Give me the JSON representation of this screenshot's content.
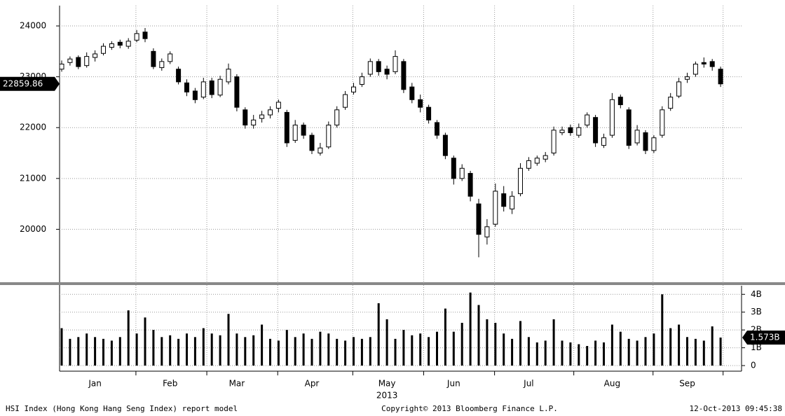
{
  "chart_data": [
    {
      "type": "candlestick",
      "categories": [
        null,
        null,
        null,
        null,
        "Jan",
        null,
        null,
        null,
        null,
        null,
        null,
        null,
        null,
        "Feb",
        null,
        null,
        null,
        null,
        null,
        null,
        null,
        "Mar",
        null,
        null,
        null,
        null,
        null,
        null,
        null,
        null,
        "Apr",
        null,
        null,
        null,
        null,
        null,
        null,
        null,
        null,
        "May",
        null,
        null,
        null,
        null,
        null,
        null,
        null,
        "Jun",
        null,
        null,
        null,
        null,
        null,
        null,
        null,
        null,
        "Jul",
        null,
        null,
        null,
        null,
        null,
        null,
        null,
        null,
        null,
        "Aug",
        null,
        null,
        null,
        null,
        null,
        null,
        null,
        null,
        "Sep",
        null,
        null,
        null,
        null
      ],
      "open": [
        23150,
        23280,
        23380,
        23220,
        23380,
        23460,
        23580,
        23680,
        23600,
        23720,
        23880,
        23500,
        23180,
        23300,
        23150,
        22880,
        22720,
        22600,
        22920,
        22640,
        22900,
        23000,
        22350,
        22050,
        22180,
        22250,
        22380,
        22300,
        21750,
        22050,
        21850,
        21500,
        21620,
        22050,
        22400,
        22700,
        22850,
        23050,
        23300,
        23150,
        23100,
        23300,
        22800,
        22550,
        22400,
        22100,
        21850,
        21400,
        21000,
        21100,
        20500,
        19850,
        20100,
        20700,
        20400,
        20700,
        21200,
        21300,
        21380,
        21500,
        21900,
        22000,
        21850,
        22050,
        22200,
        21650,
        21850,
        22600,
        22350,
        21700,
        21900,
        21550,
        21850,
        22380,
        22620,
        22950,
        23050,
        23280,
        23300,
        23150
      ],
      "high": [
        23320,
        23400,
        23420,
        23480,
        23520,
        23660,
        23700,
        23730,
        23760,
        23920,
        23960,
        23560,
        23360,
        23500,
        23200,
        22950,
        22780,
        22980,
        22980,
        23020,
        23260,
        23050,
        22400,
        22250,
        22330,
        22420,
        22550,
        22350,
        22150,
        22100,
        21900,
        21700,
        22120,
        22420,
        22720,
        22880,
        23080,
        23360,
        23350,
        23220,
        23520,
        23350,
        22880,
        22650,
        22450,
        22150,
        21900,
        21450,
        21280,
        21150,
        20600,
        20200,
        20900,
        20850,
        20750,
        21300,
        21420,
        21450,
        21520,
        22020,
        22020,
        22060,
        22080,
        22300,
        22250,
        21880,
        22680,
        22650,
        22400,
        22050,
        21950,
        21850,
        22420,
        22680,
        22980,
        23080,
        23300,
        23380,
        23350,
        23200
      ],
      "low": [
        23100,
        23220,
        23150,
        23180,
        23300,
        23420,
        23530,
        23560,
        23550,
        23680,
        23680,
        23150,
        23120,
        23250,
        22850,
        22620,
        22480,
        22560,
        22580,
        22600,
        22850,
        22320,
        21980,
        21980,
        22100,
        22180,
        22300,
        21620,
        21700,
        21780,
        21480,
        21450,
        21580,
        22000,
        22350,
        22650,
        22800,
        23000,
        23020,
        22950,
        23050,
        22680,
        22480,
        22300,
        22080,
        21780,
        21380,
        20880,
        20950,
        20550,
        19450,
        19700,
        20050,
        20350,
        20300,
        20650,
        21150,
        21250,
        21320,
        21450,
        21850,
        21840,
        21800,
        22000,
        21620,
        21600,
        21800,
        22380,
        21580,
        21650,
        21480,
        21500,
        21800,
        22330,
        22580,
        22880,
        23000,
        23180,
        23120,
        22800
      ],
      "close": [
        23250,
        23350,
        23200,
        23400,
        23450,
        23600,
        23650,
        23620,
        23700,
        23850,
        23750,
        23200,
        23300,
        23450,
        22900,
        22700,
        22550,
        22900,
        22650,
        22950,
        23150,
        22400,
        22050,
        22150,
        22250,
        22350,
        22500,
        21700,
        22050,
        21850,
        21550,
        21600,
        22050,
        22350,
        22650,
        22800,
        23000,
        23300,
        23100,
        23050,
        23400,
        22750,
        22550,
        22400,
        22150,
        21850,
        21450,
        21000,
        21200,
        20650,
        19900,
        20050,
        20750,
        20450,
        20650,
        21200,
        21350,
        21400,
        21450,
        21950,
        21950,
        21900,
        22000,
        22250,
        21700,
        21800,
        22550,
        22450,
        21650,
        21950,
        21550,
        21800,
        22350,
        22600,
        22900,
        23000,
        23250,
        23250,
        23200,
        22859.86
      ],
      "ylim": [
        19000,
        24400
      ],
      "yticks": [
        20000,
        21000,
        22000,
        23000,
        24000
      ],
      "grid": true,
      "x_year_label": "2013"
    },
    {
      "type": "bar",
      "color": "#000000",
      "values": [
        2.1,
        1.5,
        1.6,
        1.8,
        1.6,
        1.5,
        1.4,
        1.6,
        3.1,
        1.8,
        2.7,
        2.0,
        1.6,
        1.7,
        1.5,
        1.8,
        1.6,
        2.1,
        1.8,
        1.7,
        2.9,
        1.8,
        1.6,
        1.7,
        2.3,
        1.5,
        1.4,
        2.0,
        1.6,
        1.8,
        1.5,
        1.9,
        1.8,
        1.5,
        1.4,
        1.6,
        1.5,
        1.6,
        3.5,
        2.6,
        1.5,
        2.0,
        1.7,
        1.8,
        1.6,
        1.9,
        3.2,
        1.9,
        2.4,
        4.1,
        3.4,
        2.6,
        2.4,
        1.8,
        1.5,
        2.5,
        1.6,
        1.3,
        1.4,
        2.6,
        1.4,
        1.3,
        1.2,
        1.1,
        1.4,
        1.3,
        2.3,
        1.9,
        1.5,
        1.4,
        1.6,
        1.8,
        4.0,
        2.1,
        2.3,
        1.6,
        1.5,
        1.4,
        2.2,
        1.573
      ],
      "value_labels": [
        null,
        null,
        null,
        null,
        null,
        null,
        null,
        null,
        null,
        null,
        null,
        null,
        null,
        null,
        null,
        null,
        null,
        null,
        null,
        null,
        null,
        null,
        null,
        null,
        null,
        null,
        null,
        null,
        null,
        null,
        null,
        null,
        null,
        null,
        null,
        null,
        null,
        null,
        null,
        null,
        null,
        null,
        null,
        null,
        null,
        null,
        null,
        null,
        null,
        null,
        null,
        null,
        null,
        null,
        null,
        null,
        null,
        null,
        null,
        null,
        null,
        null,
        null,
        null,
        null,
        null,
        null,
        null,
        null,
        null,
        null,
        null,
        null,
        null,
        null,
        null,
        null,
        null,
        null,
        "1.573B"
      ],
      "ylim": [
        0,
        4.6
      ],
      "yticks": [
        0,
        {
          "value": 1,
          "label": "1B"
        },
        {
          "value": 2,
          "label": "2B"
        },
        {
          "value": 3,
          "label": "3B"
        },
        {
          "value": 4,
          "label": "4B"
        }
      ],
      "grid": true
    }
  ],
  "footer": {
    "left": "HSI Index (Hong Kong Hang Seng Index) report model",
    "center": "Copyright© 2013 Bloomberg Finance L.P.",
    "right": "12-Oct-2013 09:45:38"
  }
}
